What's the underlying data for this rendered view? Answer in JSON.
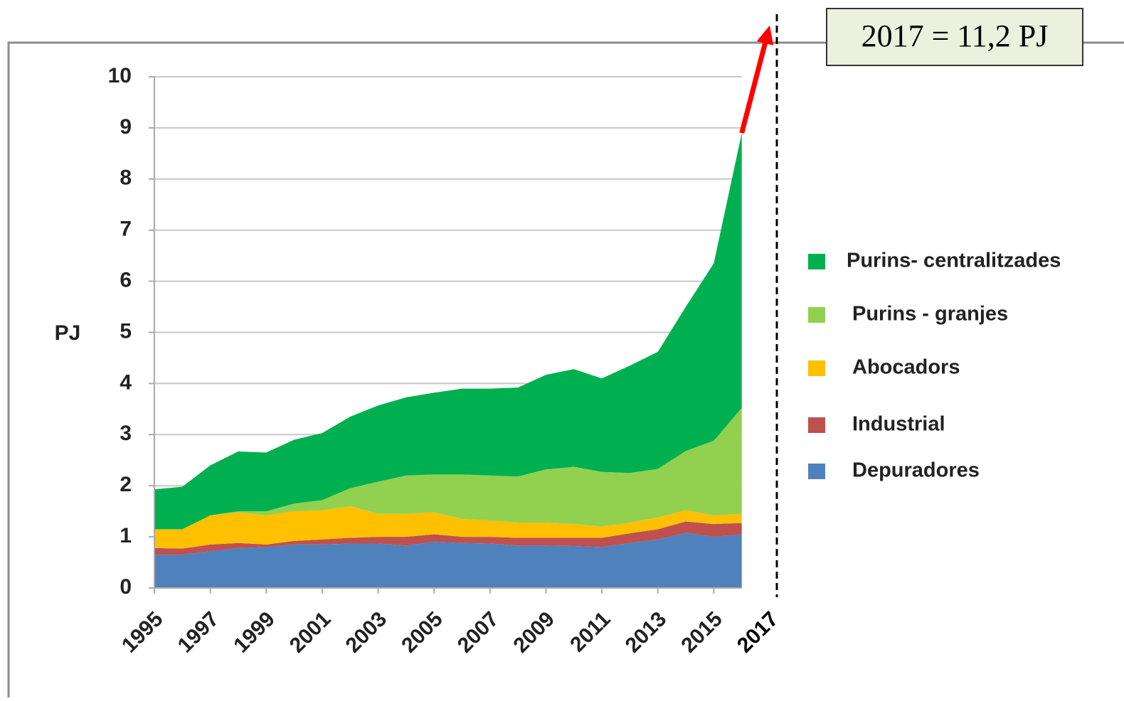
{
  "chart_data": {
    "type": "area",
    "stacked": true,
    "ylabel": "PJ",
    "x": [
      1995,
      1996,
      1997,
      1998,
      1999,
      2000,
      2001,
      2002,
      2003,
      2004,
      2005,
      2006,
      2007,
      2008,
      2009,
      2010,
      2011,
      2012,
      2013,
      2014,
      2015,
      2016
    ],
    "xlim": [
      1995,
      2017
    ],
    "xticks": [
      1995,
      1997,
      1999,
      2001,
      2003,
      2005,
      2007,
      2009,
      2011,
      2013,
      2015,
      2017
    ],
    "ylim": [
      0,
      10
    ],
    "yticks": [
      0,
      1,
      2,
      3,
      4,
      5,
      6,
      7,
      8,
      9,
      10
    ],
    "grid": true,
    "legend": "right",
    "series": [
      {
        "name": "Depuradores",
        "color": "#4f81bd",
        "values": [
          0.65,
          0.65,
          0.72,
          0.78,
          0.8,
          0.85,
          0.85,
          0.87,
          0.87,
          0.83,
          0.9,
          0.88,
          0.87,
          0.83,
          0.83,
          0.82,
          0.8,
          0.88,
          0.95,
          1.08,
          1.0,
          1.05
        ]
      },
      {
        "name": "Industrial",
        "color": "#c0504d",
        "values": [
          0.13,
          0.12,
          0.13,
          0.1,
          0.05,
          0.07,
          0.1,
          0.11,
          0.13,
          0.17,
          0.15,
          0.12,
          0.13,
          0.15,
          0.15,
          0.16,
          0.18,
          0.19,
          0.2,
          0.22,
          0.25,
          0.22
        ]
      },
      {
        "name": "Abocadors",
        "color": "#ffc000",
        "values": [
          0.37,
          0.38,
          0.57,
          0.6,
          0.57,
          0.58,
          0.57,
          0.62,
          0.45,
          0.45,
          0.43,
          0.35,
          0.32,
          0.3,
          0.3,
          0.27,
          0.22,
          0.21,
          0.23,
          0.22,
          0.17,
          0.18
        ]
      },
      {
        "name": "Purins - granjes",
        "color": "#92d050",
        "values": [
          0,
          0,
          0,
          0.02,
          0.08,
          0.15,
          0.2,
          0.35,
          0.63,
          0.75,
          0.74,
          0.87,
          0.88,
          0.9,
          1.04,
          1.12,
          1.07,
          0.97,
          0.95,
          1.16,
          1.46,
          2.07
        ]
      },
      {
        "name": "Purins- centralitzades",
        "color": "#00b050",
        "values": [
          0.78,
          0.83,
          0.98,
          1.17,
          1.15,
          1.25,
          1.31,
          1.4,
          1.49,
          1.53,
          1.6,
          1.68,
          1.7,
          1.74,
          1.85,
          1.91,
          1.83,
          2.1,
          2.29,
          2.82,
          3.47,
          5.38
        ]
      }
    ],
    "annotation": {
      "text": "2017 = 11,2 PJ",
      "x": 2017,
      "value": 11.2,
      "color": "#ff0000"
    }
  }
}
